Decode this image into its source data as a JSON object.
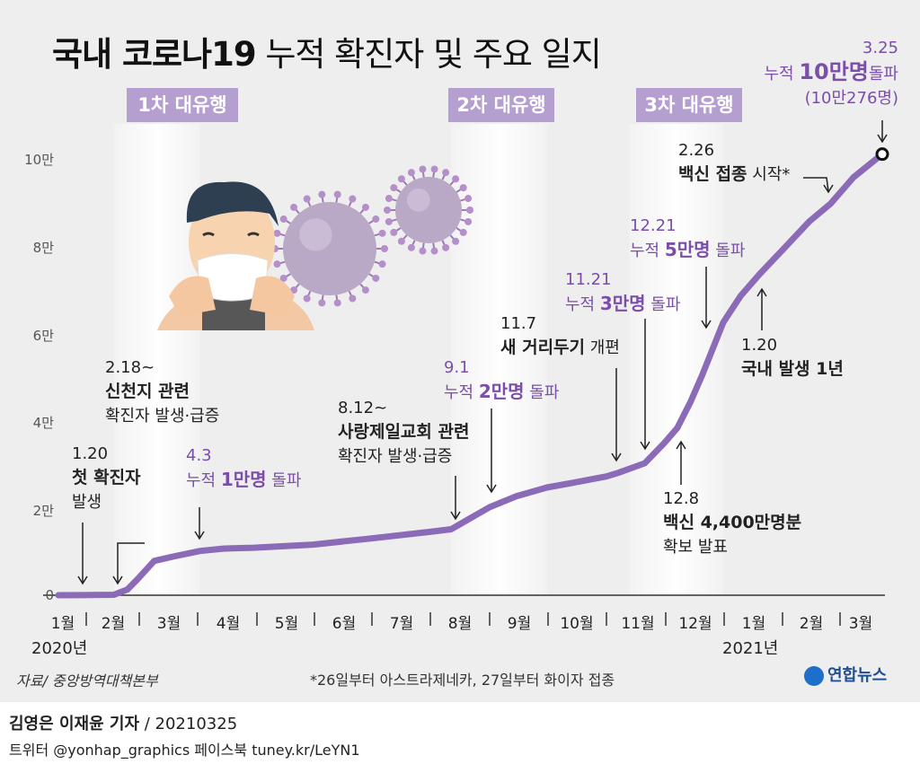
{
  "title": {
    "bold": "국내 코로나19",
    "light": "누적 확진자 및 주요 일지"
  },
  "waves": [
    "1차 대유행",
    "2차 대유행",
    "3차 대유행"
  ],
  "chart_data": {
    "type": "line",
    "title": "국내 코로나19 누적 확진자 및 주요 일지",
    "xlabel": "",
    "ylabel": "",
    "y_ticks": [
      "0",
      "2만",
      "4만",
      "6만",
      "8만",
      "10만"
    ],
    "ylim": [
      0,
      105000
    ],
    "x_ticks": [
      "1월",
      "2월",
      "3월",
      "4월",
      "5월",
      "6월",
      "7월",
      "8월",
      "9월",
      "10월",
      "11월",
      "12월",
      "1월",
      "2월",
      "3월"
    ],
    "year_labels": [
      "2020년",
      "2021년"
    ],
    "grid": false,
    "color": "#8b6bb8",
    "x": [
      "2020-01-20",
      "2020-02-01",
      "2020-02-18",
      "2020-02-25",
      "2020-03-01",
      "2020-03-10",
      "2020-03-20",
      "2020-04-03",
      "2020-04-15",
      "2020-05-01",
      "2020-06-01",
      "2020-07-01",
      "2020-08-01",
      "2020-08-12",
      "2020-08-20",
      "2020-09-01",
      "2020-09-15",
      "2020-10-01",
      "2020-10-15",
      "2020-11-01",
      "2020-11-07",
      "2020-11-21",
      "2020-12-01",
      "2020-12-08",
      "2020-12-15",
      "2020-12-21",
      "2021-01-01",
      "2021-01-10",
      "2021-01-20",
      "2021-02-01",
      "2021-02-15",
      "2021-02-26",
      "2021-03-10",
      "2021-03-25"
    ],
    "values": [
      1,
      28,
      100,
      1300,
      3500,
      7800,
      8800,
      10062,
      10600,
      10800,
      11500,
      12900,
      14400,
      15000,
      17000,
      20000,
      22500,
      24500,
      25600,
      27000,
      27800,
      30000,
      34500,
      38000,
      44000,
      50000,
      62000,
      68000,
      73000,
      78500,
      85000,
      89000,
      95000,
      100276
    ],
    "annotations": [
      {
        "date": "1.20",
        "lines": [
          "첫 확진자",
          "발생"
        ]
      },
      {
        "date": "2.18~",
        "lines": [
          "신천지 관련",
          "확진자 발생·급증"
        ]
      },
      {
        "date": "4.3",
        "lines": [
          "누적 1만명 돌파"
        ]
      },
      {
        "date": "8.12~",
        "lines": [
          "사랑제일교회 관련",
          "확진자 발생·급증"
        ]
      },
      {
        "date": "9.1",
        "lines": [
          "누적 2만명 돌파"
        ]
      },
      {
        "date": "11.7",
        "lines": [
          "새 거리두기 개편"
        ]
      },
      {
        "date": "11.21",
        "lines": [
          "누적 3만명 돌파"
        ]
      },
      {
        "date": "12.8",
        "lines": [
          "백신 4,400만명분",
          "확보 발표"
        ]
      },
      {
        "date": "12.21",
        "lines": [
          "누적 5만명 돌파"
        ]
      },
      {
        "date": "1.20",
        "lines": [
          "국내 발생 1년"
        ]
      },
      {
        "date": "2.26",
        "lines": [
          "백신 접종 시작*"
        ]
      },
      {
        "date": "3.25",
        "lines": [
          "누적 10만명돌파",
          "(10만276명)"
        ]
      }
    ]
  },
  "ann": {
    "a1": {
      "date": "1.20",
      "b": "첫 확진자",
      "t": "발생"
    },
    "a2": {
      "date": "2.18~",
      "b": "신천지 관련",
      "t": "확진자 발생·급증"
    },
    "a3": {
      "date": "4.3",
      "pre": "누적 ",
      "b": "1만명",
      "post": " 돌파"
    },
    "a4": {
      "date": "8.12~",
      "b": "사랑제일교회 관련",
      "t": "확진자 발생·급증"
    },
    "a5": {
      "date": "9.1",
      "pre": "누적 ",
      "b": "2만명",
      "post": " 돌파"
    },
    "a6": {
      "date": "11.7",
      "b": "새 거리두기",
      "post": " 개편"
    },
    "a7": {
      "date": "11.21",
      "pre": "누적 ",
      "b": "3만명",
      "post": " 돌파"
    },
    "a8": {
      "date": "12.8",
      "b": "백신 4,400만명분",
      "t": "확보 발표"
    },
    "a9": {
      "date": "12.21",
      "pre": "누적 ",
      "b": "5만명",
      "post": " 돌파"
    },
    "a10": {
      "date": "1.20",
      "b": "국내 발생 1년"
    },
    "a11": {
      "date": "2.26",
      "b": "백신 접종",
      "post": " 시작*"
    },
    "a12": {
      "date": "3.25",
      "pre": "누적 ",
      "b": "10만명",
      "post": "돌파",
      "t": "(10만276명)"
    }
  },
  "footer": {
    "source": "자료/ 중앙방역대책본부",
    "footnote": "*26일부터 아스트라제네카, 27일부터 화이자 접종",
    "logo": "연합뉴스",
    "credit_name": "김영은 이재윤 기자",
    "credit_date": " / 20210325",
    "sns": "트위터 @yonhap_graphics  페이스북 tuney.kr/LeYN1"
  }
}
